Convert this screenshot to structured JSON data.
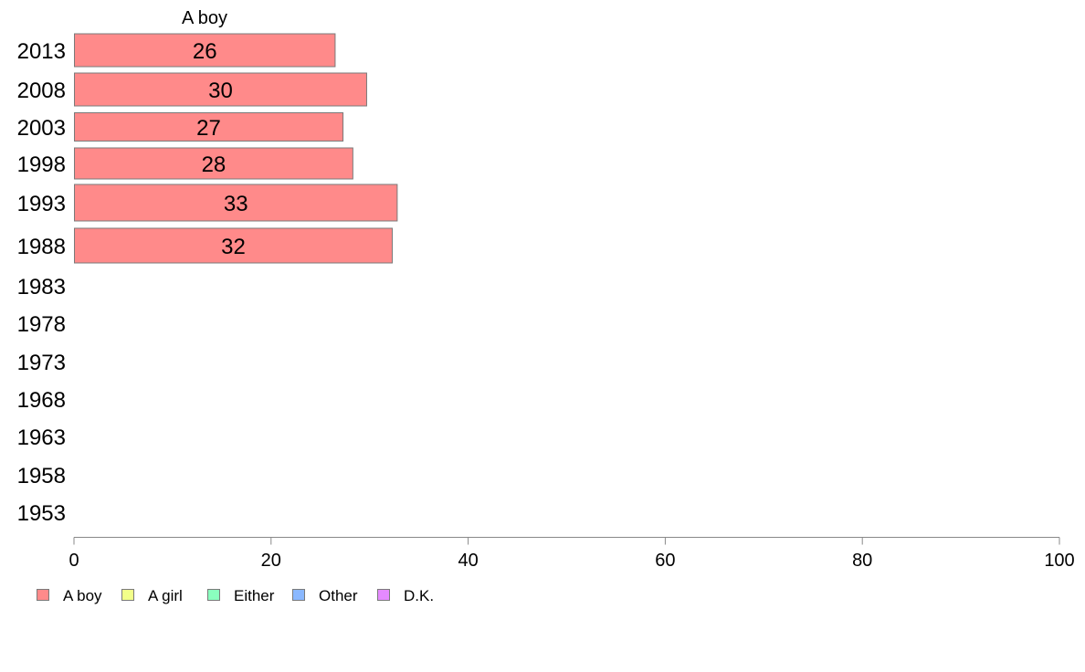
{
  "chart_data": {
    "type": "bar",
    "orientation": "horizontal",
    "title": "A boy",
    "categories": [
      "2013",
      "2008",
      "2003",
      "1998",
      "1993",
      "1988",
      "1983",
      "1978",
      "1973",
      "1968",
      "1963",
      "1958",
      "1953"
    ],
    "series": [
      {
        "name": "A boy",
        "color": "#ff8a8a",
        "values": [
          26,
          30,
          27,
          28,
          33,
          32,
          null,
          null,
          null,
          null,
          null,
          null,
          null
        ],
        "exact_values": [
          26.5,
          29.7,
          27.3,
          28.3,
          32.8,
          32.3,
          null,
          null,
          null,
          null,
          null,
          null,
          null
        ]
      }
    ],
    "xlim": [
      0,
      100
    ],
    "xticks": [
      0,
      20,
      40,
      60,
      80,
      100
    ],
    "grid": false,
    "legend": {
      "placement": "bottom-left",
      "items": [
        {
          "label": "A boy",
          "color": "#ff8a8a"
        },
        {
          "label": "A girl",
          "color": "#f2ff8a"
        },
        {
          "label": "Either",
          "color": "#8affbe"
        },
        {
          "label": "Other",
          "color": "#8ab8ff"
        },
        {
          "label": "D.K.",
          "color": "#e58aff"
        }
      ]
    }
  }
}
